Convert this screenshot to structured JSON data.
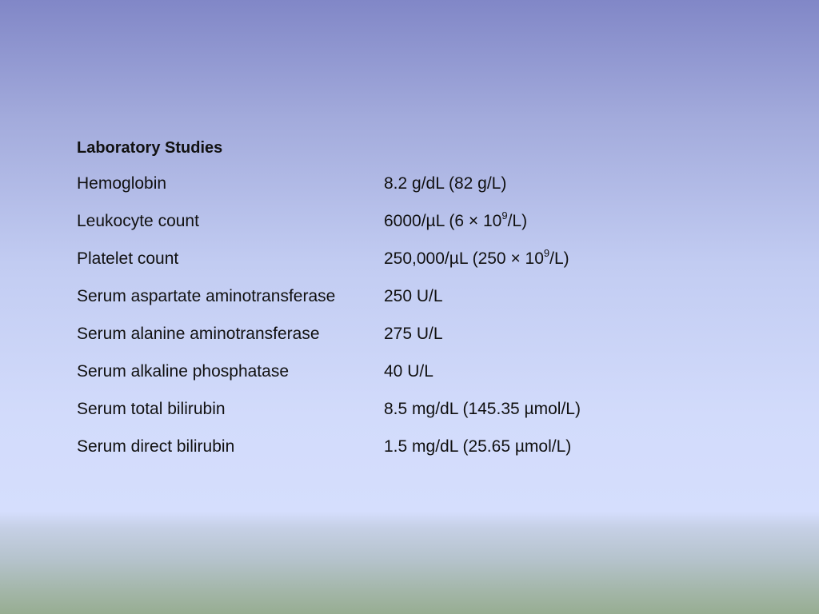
{
  "title": "Laboratory Studies",
  "rows": [
    {
      "label": "Hemoglobin",
      "value": "8.2 g/dL (82 g/L)"
    },
    {
      "label": "Leukocyte count",
      "value": "6000/µL (6 × 10",
      "sup": "9",
      "tail": "/L)"
    },
    {
      "label": "Platelet count",
      "value": "250,000/µL (250 × 10",
      "sup": "9",
      "tail": "/L)"
    },
    {
      "label": "Serum aspartate aminotransferase",
      "value": "250 U/L"
    },
    {
      "label": "Serum alanine aminotransferase",
      "value": "275 U/L"
    },
    {
      "label": "Serum alkaline phosphatase",
      "value": "40 U/L"
    },
    {
      "label": "Serum total bilirubin",
      "value": "8.5 mg/dL (145.35 µmol/L)"
    },
    {
      "label": "Serum direct bilirubin",
      "value": "1.5 mg/dL (25.65 µmol/L)"
    }
  ]
}
